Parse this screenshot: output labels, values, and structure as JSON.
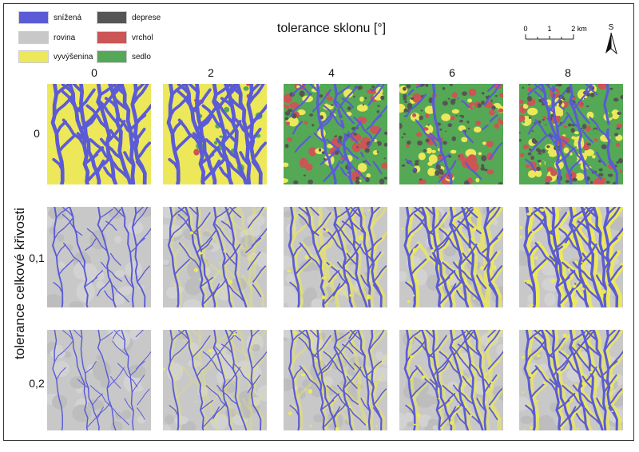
{
  "legend": {
    "items": [
      {
        "label": "snížená",
        "color": "#5b5bd6"
      },
      {
        "label": "rovina",
        "color": "#c8c8c8"
      },
      {
        "label": "vyvýšenina",
        "color": "#ece85a"
      },
      {
        "label": "deprese",
        "color": "#555555"
      },
      {
        "label": "vrchol",
        "color": "#cc5555"
      },
      {
        "label": "sedlo",
        "color": "#55a855"
      }
    ]
  },
  "title": "tolerance sklonu [°]",
  "y_title": "tolerance celkové křivosti",
  "scalebar": {
    "ticks": [
      "0",
      "1",
      "2 km"
    ]
  },
  "north_label": "S",
  "columns": [
    "0",
    "2",
    "4",
    "6",
    "8"
  ],
  "rows": [
    "0",
    "0,1",
    "0,2"
  ],
  "colors": {
    "depression": "#5b5bd6",
    "flat": "#c8c8c8",
    "elevation": "#ece85a",
    "pit": "#555555",
    "peak": "#cc5555",
    "saddle": "#55a855"
  }
}
